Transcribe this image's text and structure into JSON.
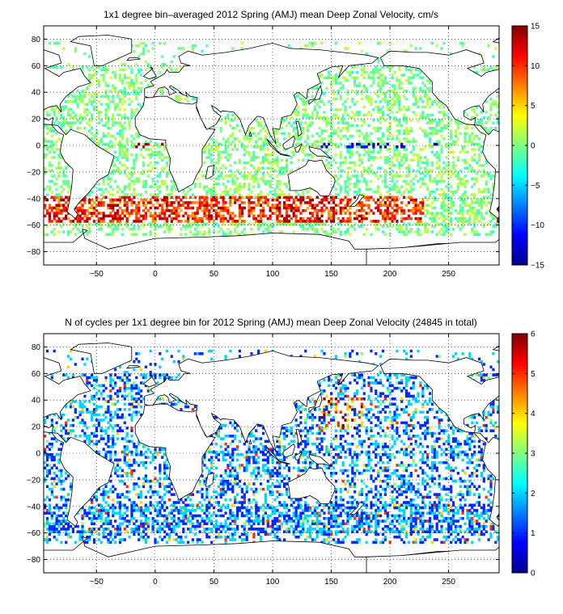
{
  "colors": {
    "jet": [
      "#00008f",
      "#0000ff",
      "#0080ff",
      "#00ffff",
      "#80ff80",
      "#ffff00",
      "#ff8000",
      "#ff0000",
      "#800000"
    ],
    "land": "#ffffff",
    "coast": "#000000",
    "grid": "#000000"
  },
  "chart_data": [
    {
      "type": "heatmap",
      "title": "1x1 degree bin–averaged 2012 Spring (AMJ) mean Deep Zonal Velocity, cm/s",
      "xlabel": "",
      "ylabel": "",
      "xlim": [
        -95,
        293
      ],
      "ylim": [
        -90,
        90
      ],
      "x_ticks": [
        -50,
        0,
        50,
        100,
        150,
        200,
        250
      ],
      "x_tick_labels": [
        "−50",
        "0",
        "50",
        "100",
        "150",
        "200",
        "250"
      ],
      "y_ticks": [
        80,
        60,
        40,
        20,
        0,
        -20,
        -40,
        -60,
        -80
      ],
      "y_tick_labels": [
        "80",
        "60",
        "40",
        "20",
        "0",
        "−20",
        "−40",
        "−60",
        "−80"
      ],
      "grid": true,
      "grid_style": "dotted",
      "colorbar": {
        "range": [
          -15,
          15
        ],
        "ticks": [
          15,
          10,
          5,
          0,
          -5,
          -10,
          -15
        ],
        "tick_labels": [
          "15",
          "10",
          "5",
          "0",
          "−5",
          "−10",
          "−15"
        ],
        "colormap": "jet"
      },
      "data_pattern": {
        "note_values": "Mostly near-zero (cyan/green/yellow) scattered bins; strong positive (red) bands in the Antarctic Circumpolar Current (40–55S, 0–220E); strong negative (blue) bins along the equator in the Pacific (near 150–240E).",
        "value_range_cms": [
          -15,
          15
        ]
      }
    },
    {
      "type": "heatmap",
      "title": "N of cycles per 1x1 degree bin for 2012 Spring (AMJ) mean Deep Zonal Velocity (24845 in total)",
      "xlabel": "",
      "ylabel": "",
      "xlim": [
        -95,
        293
      ],
      "ylim": [
        -90,
        90
      ],
      "x_ticks": [
        -50,
        0,
        50,
        100,
        150,
        200,
        250
      ],
      "x_tick_labels": [
        "−50",
        "0",
        "50",
        "100",
        "150",
        "200",
        "250"
      ],
      "y_ticks": [
        80,
        60,
        40,
        20,
        0,
        -20,
        -40,
        -60,
        -80
      ],
      "y_tick_labels": [
        "80",
        "60",
        "40",
        "20",
        "0",
        "−20",
        "−40",
        "−60",
        "−80"
      ],
      "grid": true,
      "grid_style": "dotted",
      "total_cycles": 24845,
      "colorbar": {
        "range": [
          0,
          6
        ],
        "ticks": [
          6,
          5,
          4,
          3,
          2,
          1,
          0
        ],
        "tick_labels": [
          "6",
          "5",
          "4",
          "3",
          "2",
          "1",
          "0"
        ],
        "colormap": "jet"
      },
      "data_pattern": {
        "note_values": "Mostly 1 cycle per bin (blue); higher counts (red, up to 6) concentrated in the NW Pacific near 20–40N, 140–170E and near 25N, 40E.",
        "value_range_cycles": [
          0,
          6
        ]
      }
    }
  ]
}
